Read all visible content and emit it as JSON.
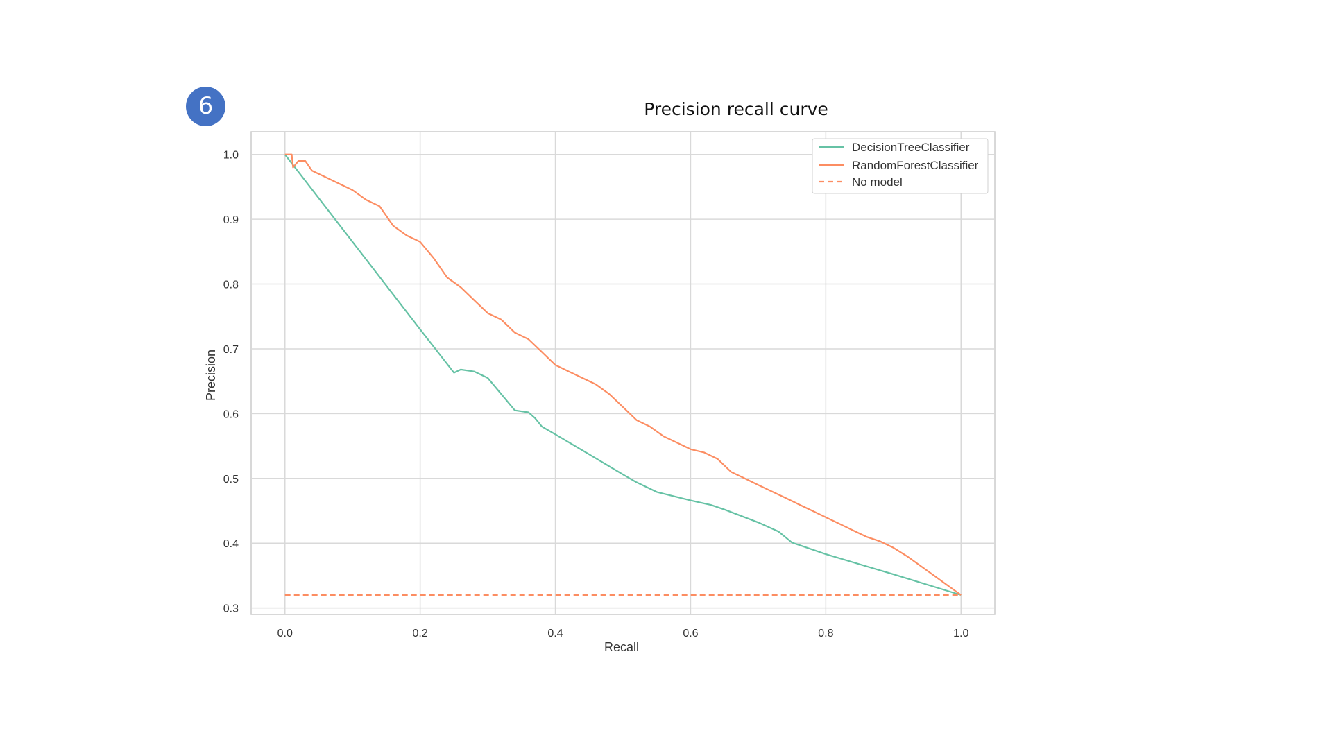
{
  "slide": {
    "step_number": "6",
    "badge_color": "#4472c4"
  },
  "chart_data": {
    "type": "line",
    "title": "Precision recall curve",
    "xlabel": "Recall",
    "ylabel": "Precision",
    "xlim": [
      -0.05,
      1.05
    ],
    "ylim": [
      0.29,
      1.035
    ],
    "xticks": [
      "0.0",
      "0.2",
      "0.4",
      "0.6",
      "0.8",
      "1.0"
    ],
    "yticks": [
      "0.3",
      "0.4",
      "0.5",
      "0.6",
      "0.7",
      "0.8",
      "0.9",
      "1.0"
    ],
    "xtick_values": [
      0.0,
      0.2,
      0.4,
      0.6,
      0.8,
      1.0
    ],
    "ytick_values": [
      0.3,
      0.4,
      0.5,
      0.6,
      0.7,
      0.8,
      0.9,
      1.0
    ],
    "grid": true,
    "legend_position": "top-right",
    "series": [
      {
        "name": "DecisionTreeClassifier",
        "color": "#66c2a5",
        "style": "solid",
        "x": [
          0.0,
          0.1,
          0.2,
          0.25,
          0.26,
          0.28,
          0.3,
          0.34,
          0.36,
          0.37,
          0.38,
          0.4,
          0.45,
          0.5,
          0.52,
          0.55,
          0.6,
          0.63,
          0.65,
          0.7,
          0.73,
          0.75,
          0.8,
          0.9,
          1.0
        ],
        "y": [
          1.0,
          0.865,
          0.73,
          0.663,
          0.668,
          0.665,
          0.655,
          0.605,
          0.602,
          0.593,
          0.58,
          0.568,
          0.537,
          0.506,
          0.494,
          0.479,
          0.466,
          0.459,
          0.452,
          0.432,
          0.418,
          0.401,
          0.383,
          0.352,
          0.32
        ]
      },
      {
        "name": "RandomForestClassifier",
        "color": "#fc8d62",
        "style": "solid",
        "x": [
          0.0,
          0.01,
          0.012,
          0.02,
          0.03,
          0.04,
          0.06,
          0.08,
          0.1,
          0.12,
          0.14,
          0.16,
          0.18,
          0.2,
          0.22,
          0.24,
          0.26,
          0.28,
          0.3,
          0.32,
          0.34,
          0.36,
          0.38,
          0.4,
          0.42,
          0.44,
          0.46,
          0.48,
          0.5,
          0.52,
          0.54,
          0.56,
          0.58,
          0.6,
          0.62,
          0.64,
          0.66,
          0.68,
          0.7,
          0.72,
          0.74,
          0.76,
          0.78,
          0.8,
          0.82,
          0.84,
          0.86,
          0.88,
          0.9,
          0.92,
          0.94,
          0.96,
          0.98,
          1.0
        ],
        "y": [
          1.0,
          1.0,
          0.98,
          0.99,
          0.99,
          0.975,
          0.965,
          0.955,
          0.945,
          0.93,
          0.92,
          0.89,
          0.875,
          0.865,
          0.84,
          0.81,
          0.795,
          0.775,
          0.755,
          0.745,
          0.725,
          0.715,
          0.695,
          0.675,
          0.665,
          0.655,
          0.645,
          0.63,
          0.61,
          0.59,
          0.58,
          0.565,
          0.555,
          0.545,
          0.54,
          0.53,
          0.51,
          0.5,
          0.49,
          0.48,
          0.47,
          0.46,
          0.45,
          0.44,
          0.43,
          0.42,
          0.41,
          0.403,
          0.393,
          0.38,
          0.365,
          0.35,
          0.335,
          0.32
        ]
      },
      {
        "name": "No model",
        "color": "#fc8d62",
        "style": "dashed",
        "x": [
          0.0,
          1.0
        ],
        "y": [
          0.32,
          0.32
        ]
      }
    ]
  }
}
